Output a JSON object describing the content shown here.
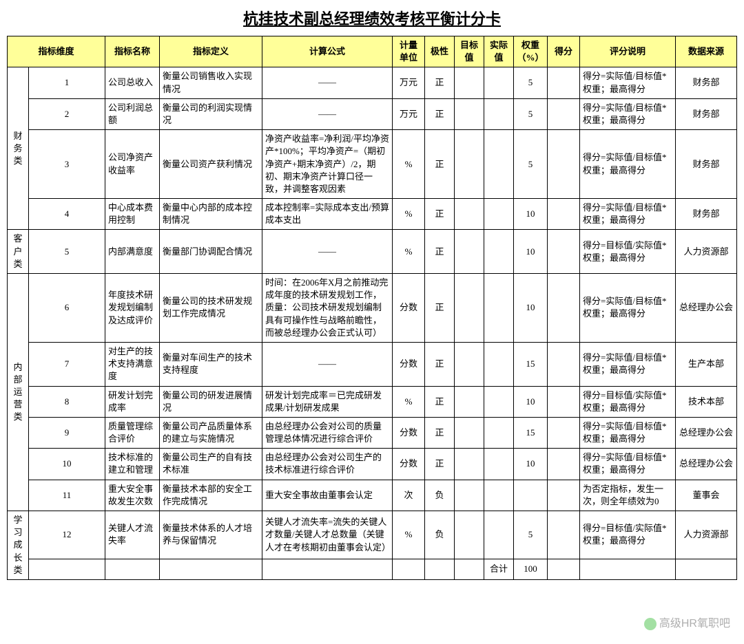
{
  "title": "杭挂技术副总经理绩效考核平衡计分卡",
  "headers": {
    "dimension": "指标维度",
    "name": "指标名称",
    "definition": "指标定义",
    "formula": "计算公式",
    "unit": "计量单位",
    "polarity": "极性",
    "target": "目标值",
    "actual": "实际值",
    "weight": "权重（%）",
    "score": "得分",
    "desc": "评分说明",
    "source": "数据来源"
  },
  "dims": {
    "finance": "财务类",
    "customer": "客户类",
    "internal": "内部运营类",
    "learn": "学习成长类"
  },
  "rows": [
    {
      "num": "1",
      "name": "公司总收入",
      "def": "衡量公司销售收入实现情况",
      "formula": "——",
      "unit": "万元",
      "pol": "正",
      "wt": "5",
      "desc": "得分=实际值/目标值*权重；最高得分",
      "src": "财务部"
    },
    {
      "num": "2",
      "name": "公司利润总额",
      "def": "衡量公司的利润实现情况",
      "formula": "——",
      "unit": "万元",
      "pol": "正",
      "wt": "5",
      "desc": "得分=实际值/目标值*权重；最高得分",
      "src": "财务部"
    },
    {
      "num": "3",
      "name": "公司净资产收益率",
      "def": "衡量公司资产获利情况",
      "formula": "净资产收益率=净利润/平均净资产*100%；平均净资产=（期初净资产+期末净资产）/2，期初、期末净资产计算口径一致，并调整客观因素",
      "unit": "%",
      "pol": "正",
      "wt": "5",
      "desc": "得分=实际值/目标值*权重；最高得分",
      "src": "财务部"
    },
    {
      "num": "4",
      "name": "中心成本费用控制",
      "def": "衡量中心内部的成本控制情况",
      "formula": "成本控制率=实际成本支出/预算成本支出",
      "unit": "%",
      "pol": "正",
      "wt": "10",
      "desc": "得分=实际值/目标值*权重；最高得分",
      "src": "财务部"
    },
    {
      "num": "5",
      "name": "内部满意度",
      "def": "衡量部门协调配合情况",
      "formula": "——",
      "unit": "%",
      "pol": "正",
      "wt": "10",
      "desc": "得分=目标值/实际值*权重；最高得分",
      "src": "人力资源部"
    },
    {
      "num": "6",
      "name": "年度技术研发规划编制及达成评价",
      "def": "衡量公司的技术研发规划工作完成情况",
      "formula": "时间：在2006年X月之前推动完成年度的技术研发规划工作，质量：公司技术研发规划编制具有可操作性与战略前瞻性，而被总经理办公会正式认可）",
      "unit": "分数",
      "pol": "正",
      "wt": "10",
      "desc": "得分=实际值/目标值*权重；最高得分",
      "src": "总经理办公会"
    },
    {
      "num": "7",
      "name": "对生产的技术支持满意度",
      "def": "衡量对车间生产的技术支持程度",
      "formula": "——",
      "unit": "分数",
      "pol": "正",
      "wt": "15",
      "desc": "得分=实际值/目标值*权重；最高得分",
      "src": "生产本部"
    },
    {
      "num": "8",
      "name": "研发计划完成率",
      "def": "衡量公司的研发进展情况",
      "formula": "研发计划完成率＝已完成研发成果/计划研发成果",
      "unit": "%",
      "pol": "正",
      "wt": "10",
      "desc": "得分=目标值/实际值*权重；最高得分",
      "src": "技术本部"
    },
    {
      "num": "9",
      "name": "质量管理综合评价",
      "def": "衡量公司产品质量体系的建立与实施情况",
      "formula": "由总经理办公会对公司的质量管理总体情况进行综合评价",
      "unit": "分数",
      "pol": "正",
      "wt": "15",
      "desc": "得分=实际值/目标值*权重；最高得分",
      "src": "总经理办公会"
    },
    {
      "num": "10",
      "name": "技术标准的建立和管理",
      "def": "衡量公司生产的自有技术标准",
      "formula": "由总经理办公会对公司生产的技术标准进行综合评价",
      "unit": "分数",
      "pol": "正",
      "wt": "10",
      "desc": "得分=实际值/目标值*权重；最高得分",
      "src": "总经理办公会"
    },
    {
      "num": "11",
      "name": "重大安全事故发生次数",
      "def": "衡量技术本部的安全工作完成情况",
      "formula": "重大安全事故由董事会认定",
      "unit": "次",
      "pol": "负",
      "wt": "",
      "desc": "为否定指标，发生一次，则全年绩效为0",
      "src": "董事会"
    },
    {
      "num": "12",
      "name": "关键人才流失率",
      "def": "衡量技术体系的人才培养与保留情况",
      "formula": "关键人才流失率=流失的关键人才数量/关键人才总数量（关键人才在考核期初由董事会认定）",
      "unit": "%",
      "pol": "负",
      "wt": "5",
      "desc": "得分=目标值/实际值*权重；最高得分",
      "src": "人力资源部"
    }
  ],
  "total": {
    "label": "合计",
    "value": "100"
  },
  "watermark": "高级HR氧职吧"
}
